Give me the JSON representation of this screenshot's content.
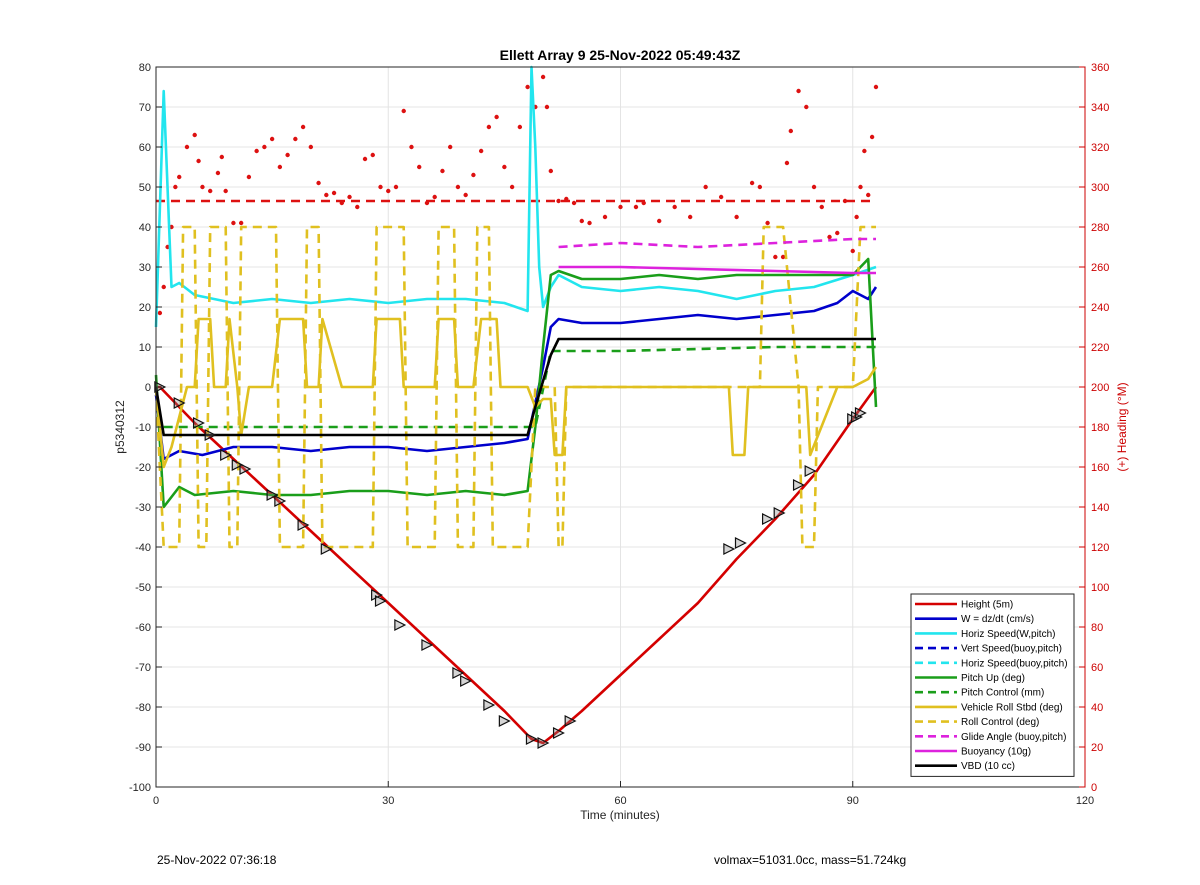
{
  "chart_data": {
    "type": "line",
    "title": "Ellett Array 9 25-Nov-2022 05:49:43Z",
    "xlabel": "Time (minutes)",
    "ylabel": "p5340312",
    "y2label": "(+) Heading (°M)",
    "xlim": [
      0,
      120
    ],
    "ylim": [
      -100,
      80
    ],
    "y2lim": [
      0,
      360
    ],
    "x_ticks": [
      "0",
      "30",
      "60",
      "90",
      "120"
    ],
    "y_ticks": [
      "80",
      "70",
      "60",
      "50",
      "40",
      "30",
      "20",
      "10",
      "0",
      "-10",
      "-20",
      "-30",
      "-40",
      "-50",
      "-60",
      "-70",
      "-80",
      "-90",
      "-100"
    ],
    "y2_ticks": [
      "360",
      "340",
      "320",
      "300",
      "280",
      "260",
      "240",
      "220",
      "200",
      "180",
      "160",
      "140",
      "120",
      "100",
      "80",
      "60",
      "40",
      "20",
      "0"
    ],
    "grid": true,
    "legend_position": "bottom-right",
    "series": [
      {
        "name": "Height (5m)",
        "color": "#d40000",
        "style": "solid",
        "x": [
          0,
          0.5,
          5,
          10,
          15,
          20,
          25,
          30,
          35,
          40,
          45,
          48.5,
          50,
          52,
          55,
          60,
          65,
          70,
          75,
          80,
          85,
          90,
          93
        ],
        "y": [
          0,
          0,
          -9,
          -18,
          -27,
          -36,
          -45,
          -54,
          -63,
          -72,
          -81,
          -88,
          -89,
          -86,
          -81,
          -72,
          -63,
          -54,
          -43,
          -33,
          -22,
          -8,
          0
        ]
      },
      {
        "name": "W = dz/dt (cm/s)",
        "color": "#0000cc",
        "style": "solid",
        "x": [
          0,
          1,
          3,
          6,
          10,
          15,
          20,
          25,
          30,
          35,
          40,
          45,
          48,
          49,
          50,
          51,
          52,
          55,
          60,
          65,
          70,
          75,
          80,
          85,
          88,
          90,
          92,
          93
        ],
        "y": [
          -2,
          -18,
          -16,
          -17,
          -15,
          -15,
          -16,
          -15,
          -15,
          -16,
          -15,
          -14,
          -13,
          -4,
          5,
          15,
          17,
          16,
          16,
          17,
          18,
          17,
          18,
          19,
          21,
          24,
          22,
          25
        ]
      },
      {
        "name": "Horiz Speed(W,pitch)",
        "color": "#22e5ee",
        "style": "solid",
        "x": [
          0,
          1,
          2,
          3,
          5,
          10,
          15,
          20,
          25,
          30,
          35,
          40,
          45,
          48,
          48.5,
          49,
          49.5,
          50,
          51,
          52,
          55,
          60,
          65,
          70,
          75,
          80,
          85,
          90,
          93
        ],
        "y": [
          15,
          74,
          25,
          26,
          23,
          21,
          22,
          21,
          22,
          21,
          22,
          22,
          21,
          19,
          80,
          60,
          30,
          20,
          25,
          28,
          25,
          24,
          25,
          24,
          22,
          24,
          25,
          28,
          30
        ]
      },
      {
        "name": "Vert Speed(buoy,pitch)",
        "color": "#0000cc",
        "style": "dashed",
        "x": [],
        "y": []
      },
      {
        "name": "Horiz Speed(buoy,pitch)",
        "color": "#22e5ee",
        "style": "dashed",
        "x": [],
        "y": []
      },
      {
        "name": "Pitch Up (deg)",
        "color": "#1a9e1a",
        "style": "solid",
        "x": [
          0,
          1,
          3,
          5,
          10,
          15,
          20,
          25,
          30,
          35,
          40,
          45,
          48,
          49,
          50,
          51,
          52,
          55,
          60,
          65,
          70,
          75,
          80,
          85,
          90,
          92,
          93
        ],
        "y": [
          3,
          -30,
          -25,
          -27,
          -26,
          -27,
          -27,
          -26,
          -26,
          -27,
          -26,
          -27,
          -26,
          -10,
          10,
          28,
          29,
          27,
          27,
          28,
          27,
          28,
          28,
          28,
          28,
          32,
          -5
        ]
      },
      {
        "name": "Pitch Control (mm)",
        "color": "#1a9e1a",
        "style": "dashed",
        "x": [
          1,
          48,
          49,
          51,
          52,
          60,
          70,
          80,
          93
        ],
        "y": [
          -10,
          -10,
          -10,
          9,
          9,
          9,
          9.5,
          10,
          10
        ]
      },
      {
        "name": "Vehicle Roll Stbd (deg)",
        "color": "#e0c020",
        "style": "solid",
        "x": [
          0,
          1,
          2,
          4,
          5,
          5.5,
          7,
          7.5,
          9,
          9.5,
          10.5,
          11,
          12,
          13,
          15,
          16,
          19,
          19.5,
          21,
          21.5,
          24,
          28,
          28.5,
          31.5,
          32,
          36,
          36.5,
          38.5,
          39,
          41,
          42,
          44,
          44.5,
          48,
          49,
          50,
          51,
          51.5,
          52.5,
          53,
          60,
          70,
          74,
          74.5,
          76,
          76.5,
          84,
          84.5,
          88,
          90,
          92,
          93
        ],
        "y": [
          0,
          -20,
          -15,
          0,
          0,
          17,
          17,
          0,
          0,
          17,
          0,
          -12,
          0,
          0,
          0,
          17,
          17,
          0,
          0,
          17,
          0,
          0,
          17,
          17,
          0,
          0,
          17,
          17,
          0,
          0,
          17,
          17,
          0,
          0,
          -5,
          -3,
          -3,
          -17,
          -17,
          0,
          0,
          0,
          0,
          -17,
          -17,
          0,
          0,
          -17,
          0,
          0,
          2,
          5
        ]
      },
      {
        "name": "Roll Control (deg)",
        "color": "#e0c020",
        "style": "dashed",
        "x": [
          0,
          1,
          3,
          3.5,
          5,
          5.5,
          6.5,
          7,
          9,
          9.5,
          10.5,
          11,
          15.5,
          16,
          19,
          19.5,
          21,
          21.5,
          28,
          28.5,
          32,
          32.5,
          36,
          36.5,
          38.5,
          39,
          41,
          41.5,
          43,
          43.5,
          48,
          49,
          51.5,
          52,
          52.5,
          53,
          78,
          78.5,
          81,
          83,
          83.5,
          85,
          85.5,
          90,
          91,
          93
        ],
        "y": [
          0,
          -40,
          -40,
          40,
          40,
          -40,
          -40,
          40,
          40,
          -40,
          -40,
          40,
          40,
          -40,
          -40,
          40,
          40,
          -40,
          -40,
          40,
          40,
          -40,
          -40,
          40,
          40,
          -40,
          -40,
          40,
          40,
          -40,
          -40,
          0,
          0,
          -40,
          -40,
          0,
          0,
          40,
          40,
          0,
          -40,
          -40,
          0,
          0,
          40,
          40
        ]
      },
      {
        "name": "Glide Angle (buoy,pitch)",
        "color": "#dd22dd",
        "style": "dashed",
        "x": [
          52,
          60,
          70,
          80,
          90,
          93
        ],
        "y": [
          35,
          36,
          35,
          36,
          37,
          37
        ]
      },
      {
        "name": "Buoyancy (10g)",
        "color": "#dd22dd",
        "style": "solid",
        "x": [
          52,
          60,
          70,
          80,
          90,
          93
        ],
        "y": [
          30,
          30,
          29.5,
          29,
          28.5,
          28.5
        ]
      },
      {
        "name": "VBD (10 cc)",
        "color": "#000000",
        "style": "solid",
        "x": [
          0,
          1,
          48,
          49,
          51,
          52,
          93
        ],
        "y": [
          0,
          -12,
          -12,
          -5,
          8,
          12,
          12
        ]
      }
    ],
    "heading_points": {
      "name": "Heading",
      "axis": "right",
      "color": "#dd1111",
      "x": [
        0.5,
        1,
        1.5,
        2,
        2.5,
        3,
        4,
        5,
        5.5,
        6,
        7,
        8,
        8.5,
        9,
        10,
        11,
        12,
        13,
        14,
        15,
        16,
        17,
        18,
        19,
        20,
        21,
        22,
        23,
        24,
        25,
        26,
        27,
        28,
        29,
        30,
        31,
        32,
        33,
        34,
        35,
        36,
        37,
        38,
        39,
        40,
        41,
        42,
        43,
        44,
        45,
        46,
        47,
        48,
        49,
        50,
        50.5,
        51,
        52,
        53,
        54,
        55,
        56,
        58,
        60,
        62,
        63,
        65,
        67,
        69,
        71,
        73,
        75,
        77,
        78,
        79,
        80,
        81,
        81.5,
        82,
        83,
        84,
        85,
        86,
        87,
        88,
        89,
        90,
        90.5,
        91,
        91.5,
        92,
        92.5,
        93
      ],
      "y": [
        237,
        250,
        270,
        280,
        300,
        305,
        320,
        326,
        313,
        300,
        298,
        307,
        315,
        298,
        282,
        282,
        305,
        318,
        320,
        324,
        310,
        316,
        324,
        330,
        320,
        302,
        296,
        297,
        292,
        295,
        290,
        314,
        316,
        300,
        298,
        300,
        338,
        320,
        310,
        292,
        295,
        308,
        320,
        300,
        296,
        306,
        318,
        330,
        335,
        310,
        300,
        330,
        350,
        340,
        355,
        340,
        308,
        293,
        294,
        292,
        283,
        282,
        285,
        290,
        290,
        292,
        283,
        290,
        285,
        300,
        295,
        285,
        302,
        300,
        282,
        265,
        265,
        312,
        328,
        348,
        340,
        300,
        290,
        275,
        277,
        293,
        268,
        285,
        300,
        318,
        296,
        325,
        350
      ]
    },
    "heading_mean": {
      "name": "Mean heading",
      "axis": "right",
      "color": "#dd1111",
      "style": "dashed",
      "y": 293
    },
    "markers": {
      "shape": "triangle",
      "x": [
        0.5,
        3,
        5.5,
        7,
        9,
        10.5,
        11.5,
        15,
        16,
        19,
        22,
        28.5,
        29,
        31.5,
        35,
        39,
        40,
        43,
        45,
        48.5,
        50,
        52,
        53.5,
        74,
        75.5,
        79,
        80.5,
        83,
        84.5,
        90,
        90.5,
        91
      ],
      "y": [
        0,
        -4,
        -9,
        -12,
        -17,
        -19.5,
        -20.5,
        -27,
        -28.5,
        -34.5,
        -40.5,
        -52,
        -53.5,
        -59.5,
        -64.5,
        -71.5,
        -73.5,
        -79.5,
        -83.5,
        -88,
        -89,
        -86.5,
        -83.5,
        -40.5,
        -39,
        -33,
        -31.5,
        -24.5,
        -21,
        -8,
        -7.5,
        -6.5
      ]
    }
  },
  "footer": {
    "timestamp": "25-Nov-2022 07:36:18",
    "volume_mass": "volmax=51031.0cc, mass=51.724kg"
  }
}
